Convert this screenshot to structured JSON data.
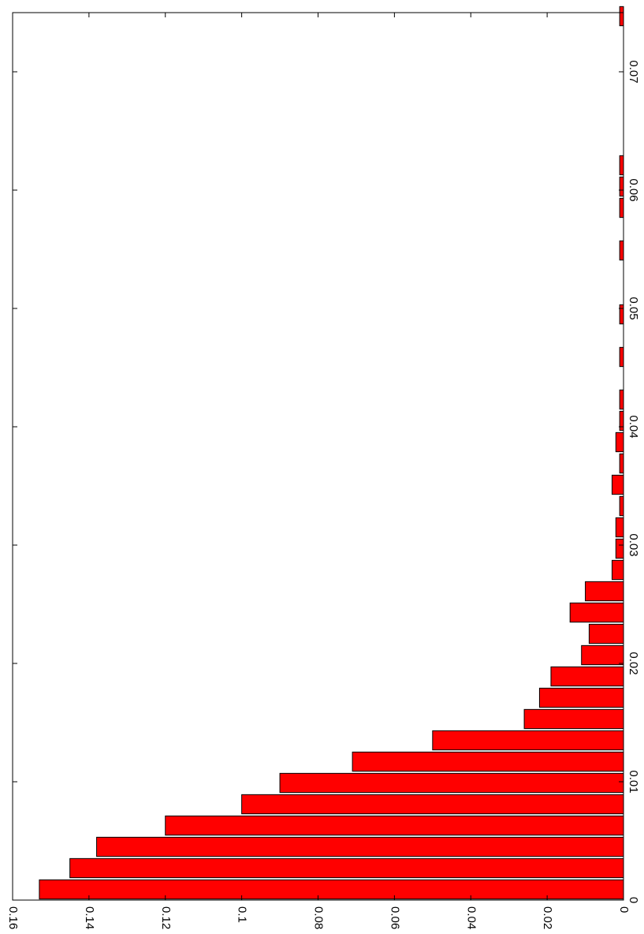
{
  "chart_data": {
    "type": "bar",
    "orientation": "rotated-horizontal",
    "title": "",
    "xlabel": "",
    "ylabel": "",
    "grid": false,
    "xlim": [
      0,
      0.075
    ],
    "ylim": [
      0,
      0.16
    ],
    "bar_color": "#ff0000",
    "edge_color": "#000000",
    "x_ticks": [
      {
        "value": 0,
        "label": "0"
      },
      {
        "value": 0.01,
        "label": "0.01"
      },
      {
        "value": 0.02,
        "label": "0.02"
      },
      {
        "value": 0.03,
        "label": "0.03"
      },
      {
        "value": 0.04,
        "label": "0.04"
      },
      {
        "value": 0.05,
        "label": "0.05"
      },
      {
        "value": 0.06,
        "label": "0.06"
      },
      {
        "value": 0.07,
        "label": "0.07"
      }
    ],
    "y_ticks": [
      {
        "value": 0,
        "label": "0"
      },
      {
        "value": 0.02,
        "label": "0.02"
      },
      {
        "value": 0.04,
        "label": "0.04"
      },
      {
        "value": 0.06,
        "label": "0.06"
      },
      {
        "value": 0.08,
        "label": "0.08"
      },
      {
        "value": 0.1,
        "label": "0.1"
      },
      {
        "value": 0.12,
        "label": "0.12"
      },
      {
        "value": 0.14,
        "label": "0.14"
      },
      {
        "value": 0.16,
        "label": "0.16"
      }
    ],
    "bin_width": 0.0018,
    "x": [
      0.0009,
      0.0027,
      0.0045,
      0.0063,
      0.0081,
      0.0099,
      0.0117,
      0.0135,
      0.0153,
      0.0171,
      0.0189,
      0.0207,
      0.0225,
      0.0243,
      0.0261,
      0.0279,
      0.0297,
      0.0315,
      0.0333,
      0.0351,
      0.0369,
      0.0387,
      0.0405,
      0.0423,
      0.0459,
      0.0495,
      0.0549,
      0.0585,
      0.0603,
      0.0621,
      0.0747
    ],
    "values": [
      0.153,
      0.145,
      0.138,
      0.12,
      0.1,
      0.09,
      0.071,
      0.05,
      0.026,
      0.022,
      0.019,
      0.011,
      0.009,
      0.014,
      0.01,
      0.003,
      0.002,
      0.002,
      0.001,
      0.003,
      0.001,
      0.002,
      0.001,
      0.001,
      0.001,
      0.001,
      0.001,
      0.001,
      0.001,
      0.001,
      0.001
    ]
  }
}
